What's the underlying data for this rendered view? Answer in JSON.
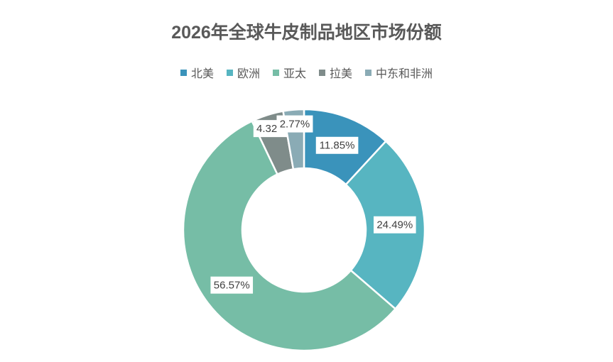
{
  "chart_data": {
    "type": "donut",
    "title": "2026年全球牛皮制品地区市场份额",
    "categories": [
      "北美",
      "欧洲",
      "亚太",
      "拉美",
      "中东和非洲"
    ],
    "values": [
      11.85,
      24.49,
      56.57,
      4.32,
      2.77
    ],
    "value_labels": [
      "11.85%",
      "24.49%",
      "56.57%",
      "4.32%",
      "2.77%"
    ],
    "colors": [
      "#3a93bb",
      "#57b5c1",
      "#76bda6",
      "#7f8c8a",
      "#8aabb5"
    ],
    "legend": "top"
  }
}
